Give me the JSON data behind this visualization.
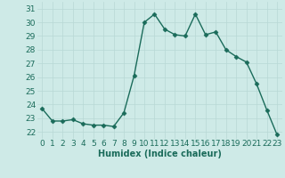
{
  "x": [
    0,
    1,
    2,
    3,
    4,
    5,
    6,
    7,
    8,
    9,
    10,
    11,
    12,
    13,
    14,
    15,
    16,
    17,
    18,
    19,
    20,
    21,
    22,
    23
  ],
  "y": [
    23.7,
    22.8,
    22.8,
    22.9,
    22.6,
    22.5,
    22.5,
    22.4,
    23.4,
    26.1,
    30.0,
    30.6,
    29.5,
    29.1,
    29.0,
    30.6,
    29.1,
    29.3,
    28.0,
    27.5,
    27.1,
    25.5,
    23.6,
    21.8
  ],
  "line_color": "#1a6b5a",
  "marker": "D",
  "marker_size": 2.5,
  "bg_color": "#ceeae7",
  "grid_color": "#b8d8d5",
  "xlabel": "Humidex (Indice chaleur)",
  "xlim": [
    -0.5,
    23.5
  ],
  "ylim": [
    21.5,
    31.5
  ],
  "yticks": [
    22,
    23,
    24,
    25,
    26,
    27,
    28,
    29,
    30,
    31
  ],
  "xticks": [
    0,
    1,
    2,
    3,
    4,
    5,
    6,
    7,
    8,
    9,
    10,
    11,
    12,
    13,
    14,
    15,
    16,
    17,
    18,
    19,
    20,
    21,
    22,
    23
  ],
  "xlabel_fontsize": 7,
  "tick_fontsize": 6.5,
  "linewidth": 1.0
}
